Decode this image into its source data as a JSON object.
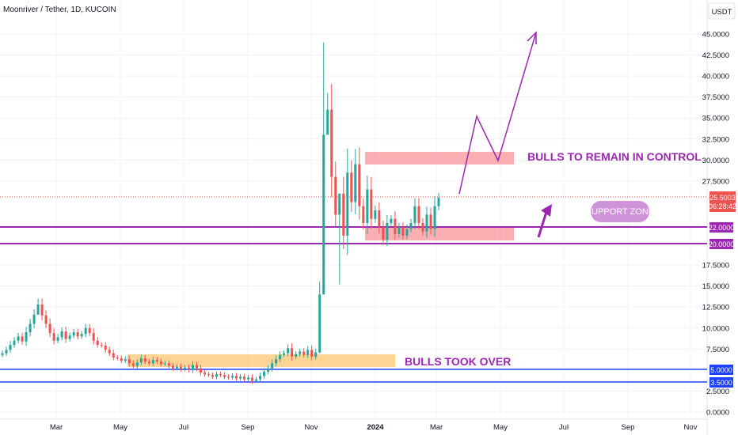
{
  "header": {
    "title": "Moonriver / Tether, 1D, KUCOIN",
    "currency": "USDT"
  },
  "colors": {
    "up": "#26a69a",
    "down": "#ef5350",
    "purple": "#9c27b0",
    "blue": "#1e40ff",
    "orange_zone": "#ffb74d",
    "red_zone": "#f77c80",
    "support_label": "#ce93d8",
    "price_label": "#ef5350"
  },
  "chart_data": {
    "type": "candlestick",
    "title": "Moonriver / Tether, 1D, KUCOIN",
    "ylabel": "USDT",
    "ylim": [
      0,
      45
    ],
    "y_ticks": [
      {
        "value": 0,
        "label": "0.0000"
      },
      {
        "value": 2.5,
        "label": "2.5000"
      },
      {
        "value": 7.5,
        "label": "7.5000"
      },
      {
        "value": 10,
        "label": "10.0000"
      },
      {
        "value": 12.5,
        "label": "12.5000"
      },
      {
        "value": 15,
        "label": "15.0000"
      },
      {
        "value": 17.5,
        "label": "17.5000"
      },
      {
        "value": 27.5,
        "label": "27.5000"
      },
      {
        "value": 30,
        "label": "30.0000"
      },
      {
        "value": 32.5,
        "label": "32.5000"
      },
      {
        "value": 35,
        "label": "35.0000"
      },
      {
        "value": 37.5,
        "label": "37.5000"
      },
      {
        "value": 40,
        "label": "40.0000"
      },
      {
        "value": 42.5,
        "label": "42.5000"
      },
      {
        "value": 45,
        "label": "45.0000"
      }
    ],
    "x_ticks": [
      {
        "label": "Mar",
        "bold": false
      },
      {
        "label": "May",
        "bold": false
      },
      {
        "label": "Jul",
        "bold": false
      },
      {
        "label": "Sep",
        "bold": false
      },
      {
        "label": "Nov",
        "bold": false
      },
      {
        "label": "2024",
        "bold": true
      },
      {
        "label": "Mar",
        "bold": false
      },
      {
        "label": "May",
        "bold": false
      },
      {
        "label": "Jul",
        "bold": false
      },
      {
        "label": "Sep",
        "bold": false
      },
      {
        "label": "Nov",
        "bold": false
      }
    ],
    "current_price": {
      "value": 25.5003,
      "label": "25.5003",
      "countdown": "06:28:42"
    },
    "levels": [
      {
        "value": 22.0,
        "label": "22.0000",
        "color": "purple"
      },
      {
        "value": 20.0,
        "label": "20.0000",
        "color": "purple"
      },
      {
        "value": 5.0,
        "label": "5.0000",
        "color": "blue"
      },
      {
        "value": 3.5,
        "label": "3.5000",
        "color": "blue"
      }
    ],
    "annotations": {
      "bulls_control": "BULLS TO REMAIN IN CONTROL",
      "bulls_took_over": "BULLS TOOK OVER",
      "support_zone": "SUPPORT ZONE"
    },
    "series_close": [
      7.0,
      7.4,
      8.0,
      8.5,
      9.0,
      8.4,
      9.5,
      10.5,
      11.6,
      12.8,
      11.5,
      10.5,
      9.4,
      8.5,
      8.9,
      9.6,
      8.7,
      9.1,
      9.5,
      9.0,
      9.3,
      10.0,
      9.4,
      8.5,
      8.0,
      7.9,
      7.4,
      7.0,
      6.5,
      6.4,
      6.1,
      6.3,
      5.8,
      5.5,
      5.9,
      6.4,
      6.0,
      5.8,
      6.2,
      6.0,
      5.7,
      5.8,
      5.5,
      5.2,
      5.4,
      5.1,
      5.3,
      5.0,
      5.6,
      5.2,
      4.7,
      4.5,
      4.4,
      4.2,
      4.5,
      4.4,
      4.2,
      4.1,
      4.3,
      4.0,
      4.2,
      3.9,
      4.1,
      3.7,
      3.9,
      4.3,
      4.8,
      5.2,
      5.8,
      6.3,
      6.8,
      7.0,
      7.6,
      6.6,
      6.9,
      7.2,
      6.8,
      7.4,
      6.6,
      7.1,
      14.0,
      33.0,
      36.0,
      28.0,
      23.5,
      26.0,
      21.0,
      28.5,
      25.0,
      29.5,
      24.5,
      22.5,
      26.5,
      23.0,
      24.0,
      22.0,
      20.5,
      22.5,
      23.0,
      21.2,
      22.0,
      21.0,
      21.8,
      22.5,
      24.5,
      22.5,
      21.5,
      23.5,
      21.8,
      24.5,
      25.5
    ]
  }
}
